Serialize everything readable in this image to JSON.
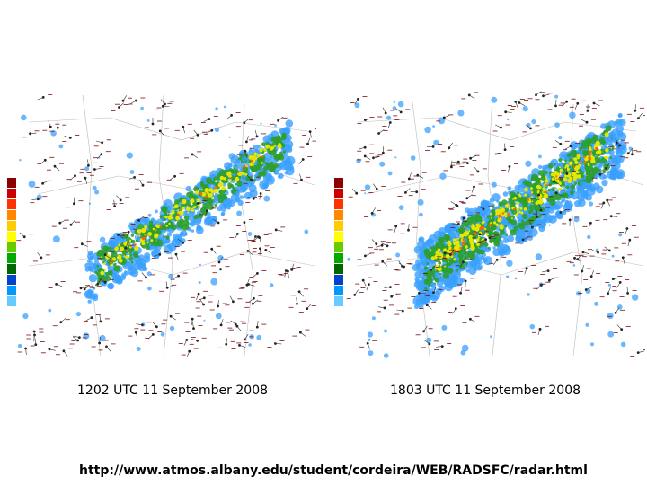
{
  "panels": [
    {
      "id": "left",
      "time_label": "1202 UTC 11 September 2008"
    },
    {
      "id": "right",
      "time_label": "1803 UTC 11 September 2008"
    }
  ],
  "source_url": "http://www.atmos.albany.edu/student/cordeira/WEB/RADSFC/radar.html",
  "colorbar_colors": [
    "#8b0000",
    "#cc0000",
    "#ff3300",
    "#ff8800",
    "#ffcc00",
    "#ffff00",
    "#66cc00",
    "#00aa00",
    "#006600",
    "#0044cc",
    "#0099ff",
    "#66ccff"
  ],
  "radar_colors": {
    "light": "#3aa0ff",
    "mid": "#2e9e2e",
    "heavy": "#e6e600",
    "core": "#ff6600"
  }
}
